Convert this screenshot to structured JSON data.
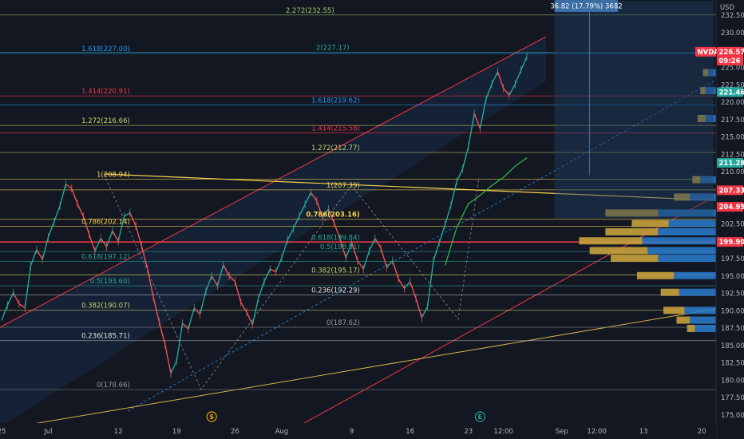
{
  "chart_data": {
    "type": "line",
    "symbol": "NVDA",
    "currency": "USD",
    "price_axis": {
      "min": 174.0,
      "max": 235.8,
      "ticks": [
        175.0,
        177.5,
        180.0,
        182.5,
        185.0,
        187.5,
        190.0,
        192.5,
        195.0,
        197.5,
        200.0,
        202.5,
        205.0,
        207.5,
        210.0,
        212.5,
        215.0,
        217.5,
        220.0,
        222.5,
        225.0,
        227.5,
        230.0,
        232.5
      ]
    },
    "time_axis": {
      "labels": [
        {
          "text": "25",
          "i": 0
        },
        {
          "text": "Jul",
          "i": 4
        },
        {
          "text": "12",
          "i": 10
        },
        {
          "text": "19",
          "i": 15
        },
        {
          "text": "26",
          "i": 20
        },
        {
          "text": "Aug",
          "i": 24
        },
        {
          "text": "9",
          "i": 30
        },
        {
          "text": "16",
          "i": 35
        },
        {
          "text": "23",
          "i": 40
        },
        {
          "text": "12:00",
          "i": 43
        },
        {
          "text": "Sep",
          "i": 48
        },
        {
          "text": "12:00",
          "i": 51
        },
        {
          "text": "13",
          "i": 55
        },
        {
          "text": "20",
          "i": 60
        }
      ],
      "markers": [
        {
          "text": "S",
          "i": 18,
          "color": "#f0a500"
        },
        {
          "text": "E",
          "i": 41,
          "color": "#26a69a"
        }
      ]
    },
    "price_series": [
      {
        "i": 0,
        "v": 188.6
      },
      {
        "i": 0.5,
        "v": 190.8
      },
      {
        "i": 1,
        "v": 192.6
      },
      {
        "i": 1.5,
        "v": 191.0
      },
      {
        "i": 2,
        "v": 190.4
      },
      {
        "i": 2.5,
        "v": 196.5
      },
      {
        "i": 3,
        "v": 198.8
      },
      {
        "i": 3.5,
        "v": 197.4
      },
      {
        "i": 4,
        "v": 200.6
      },
      {
        "i": 4.5,
        "v": 202.8
      },
      {
        "i": 5,
        "v": 205.1
      },
      {
        "i": 5.5,
        "v": 208.2
      },
      {
        "i": 6,
        "v": 207.6
      },
      {
        "i": 6.5,
        "v": 205.4
      },
      {
        "i": 7,
        "v": 203.6
      },
      {
        "i": 7.5,
        "v": 201.0
      },
      {
        "i": 8,
        "v": 198.6
      },
      {
        "i": 8.5,
        "v": 200.4
      },
      {
        "i": 9,
        "v": 199.2
      },
      {
        "i": 9.5,
        "v": 201.5
      },
      {
        "i": 10,
        "v": 200.0
      },
      {
        "i": 10.5,
        "v": 203.6
      },
      {
        "i": 11,
        "v": 204.1
      },
      {
        "i": 11.5,
        "v": 202.2
      },
      {
        "i": 12,
        "v": 199.3
      },
      {
        "i": 12.5,
        "v": 196.0
      },
      {
        "i": 13,
        "v": 192.0
      },
      {
        "i": 13.5,
        "v": 188.4
      },
      {
        "i": 14,
        "v": 185.2
      },
      {
        "i": 14.5,
        "v": 181.0
      },
      {
        "i": 15,
        "v": 182.8
      },
      {
        "i": 15.5,
        "v": 188.2
      },
      {
        "i": 16,
        "v": 187.4
      },
      {
        "i": 16.5,
        "v": 190.4
      },
      {
        "i": 17,
        "v": 189.5
      },
      {
        "i": 17.5,
        "v": 192.8
      },
      {
        "i": 18,
        "v": 195.0
      },
      {
        "i": 18.5,
        "v": 193.6
      },
      {
        "i": 19,
        "v": 196.6
      },
      {
        "i": 19.5,
        "v": 195.0
      },
      {
        "i": 20,
        "v": 194.2
      },
      {
        "i": 20.5,
        "v": 191.2
      },
      {
        "i": 21,
        "v": 189.8
      },
      {
        "i": 21.5,
        "v": 188.0
      },
      {
        "i": 22,
        "v": 191.8
      },
      {
        "i": 22.5,
        "v": 194.2
      },
      {
        "i": 23,
        "v": 196.0
      },
      {
        "i": 23.5,
        "v": 195.6
      },
      {
        "i": 24,
        "v": 197.6
      },
      {
        "i": 24.5,
        "v": 200.2
      },
      {
        "i": 25,
        "v": 201.8
      },
      {
        "i": 25.5,
        "v": 203.6
      },
      {
        "i": 26,
        "v": 205.3
      },
      {
        "i": 26.5,
        "v": 207.0
      },
      {
        "i": 27,
        "v": 205.8
      },
      {
        "i": 27.5,
        "v": 203.4
      },
      {
        "i": 28,
        "v": 204.6
      },
      {
        "i": 28.5,
        "v": 202.6
      },
      {
        "i": 29,
        "v": 200.4
      },
      {
        "i": 29.5,
        "v": 197.6
      },
      {
        "i": 30,
        "v": 199.8
      },
      {
        "i": 30.5,
        "v": 197.2
      },
      {
        "i": 31,
        "v": 196.0
      },
      {
        "i": 31.5,
        "v": 198.6
      },
      {
        "i": 32,
        "v": 200.4
      },
      {
        "i": 32.5,
        "v": 199.0
      },
      {
        "i": 33,
        "v": 196.2
      },
      {
        "i": 33.5,
        "v": 197.2
      },
      {
        "i": 34,
        "v": 194.6
      },
      {
        "i": 34.5,
        "v": 193.2
      },
      {
        "i": 35,
        "v": 194.2
      },
      {
        "i": 35.5,
        "v": 191.8
      },
      {
        "i": 36,
        "v": 189.0
      },
      {
        "i": 36.5,
        "v": 190.6
      },
      {
        "i": 37,
        "v": 197.2
      },
      {
        "i": 37.5,
        "v": 199.8
      },
      {
        "i": 38,
        "v": 202.4
      },
      {
        "i": 38.5,
        "v": 205.2
      },
      {
        "i": 39,
        "v": 208.6
      },
      {
        "i": 39.5,
        "v": 210.4
      },
      {
        "i": 40,
        "v": 213.6
      },
      {
        "i": 40.5,
        "v": 218.4
      },
      {
        "i": 41,
        "v": 216.2
      },
      {
        "i": 41.5,
        "v": 220.4
      },
      {
        "i": 42,
        "v": 222.6
      },
      {
        "i": 42.5,
        "v": 224.4
      },
      {
        "i": 43,
        "v": 222.0
      },
      {
        "i": 43.5,
        "v": 221.0
      },
      {
        "i": 44,
        "v": 222.6
      },
      {
        "i": 44.5,
        "v": 224.6
      },
      {
        "i": 45,
        "v": 226.57
      }
    ],
    "moving_average": [
      {
        "i": 38,
        "v": 196.5
      },
      {
        "i": 39,
        "v": 202.0
      },
      {
        "i": 40,
        "v": 205.4
      },
      {
        "i": 41,
        "v": 206.6
      },
      {
        "i": 42,
        "v": 208.0
      },
      {
        "i": 43,
        "v": 209.2
      },
      {
        "i": 44,
        "v": 210.8
      },
      {
        "i": 45,
        "v": 212.0
      }
    ],
    "fib_labels": [
      {
        "text": "2.272(232.55)",
        "price": 232.55,
        "i": 28.5,
        "color": "#a8c66c",
        "weight": "normal"
      },
      {
        "text": "1.618(227.00)",
        "price": 227.0,
        "i": 11,
        "color": "#2196f3",
        "weight": "normal"
      },
      {
        "text": "2(227.17)",
        "price": 227.17,
        "i": 29.8,
        "color": "#26a69a",
        "weight": "normal"
      },
      {
        "text": "1.414(220.91)",
        "price": 220.91,
        "i": 11,
        "color": "#f23645",
        "weight": "normal"
      },
      {
        "text": "1.618(219.62)",
        "price": 219.62,
        "i": 30.7,
        "color": "#2196f3",
        "weight": "normal"
      },
      {
        "text": "1.272(216.66)",
        "price": 216.66,
        "i": 11,
        "color": "#c6d46c",
        "weight": "normal"
      },
      {
        "text": "1.414(215.58)",
        "price": 215.58,
        "i": 30.7,
        "color": "#f23645",
        "weight": "normal"
      },
      {
        "text": "1.272(212.77)",
        "price": 212.77,
        "i": 30.7,
        "color": "#c6d46c",
        "weight": "normal"
      },
      {
        "text": "1(208.94)",
        "price": 208.94,
        "i": 11,
        "color": "#f7d34f",
        "weight": "normal"
      },
      {
        "text": "1(207.39)",
        "price": 207.39,
        "i": 30.7,
        "color": "#f7d34f",
        "weight": "normal"
      },
      {
        "text": "0.786(202.14)",
        "price": 202.14,
        "i": 11,
        "color": "#f7d34f",
        "weight": "normal"
      },
      {
        "text": "0.786(203.16)",
        "price": 203.16,
        "i": 30.7,
        "color": "#f7d34f",
        "weight": "bold"
      },
      {
        "text": "0.618(199.84)",
        "price": 199.84,
        "i": 30.7,
        "color": "#26a69a",
        "weight": "normal"
      },
      {
        "text": "0.618(197.12)",
        "price": 197.12,
        "i": 11,
        "color": "#26a69a",
        "weight": "normal"
      },
      {
        "text": "0.5(198.51)",
        "price": 198.51,
        "i": 30.7,
        "color": "#26a69a",
        "weight": "normal"
      },
      {
        "text": "0.5(193.60)",
        "price": 193.6,
        "i": 11,
        "color": "#26a69a",
        "weight": "normal"
      },
      {
        "text": "0.382(195.17)",
        "price": 195.17,
        "i": 30.7,
        "color": "#c6d46c",
        "weight": "normal"
      },
      {
        "text": "0.382(190.07)",
        "price": 190.07,
        "i": 11,
        "color": "#c6d46c",
        "weight": "normal"
      },
      {
        "text": "0.236(192.29)",
        "price": 192.29,
        "i": 30.7,
        "color": "#e0e0e0",
        "weight": "normal"
      },
      {
        "text": "0.236(185.71)",
        "price": 185.71,
        "i": 11,
        "color": "#e0e0e0",
        "weight": "normal"
      },
      {
        "text": "0(187.62)",
        "price": 187.62,
        "i": 30.7,
        "color": "#9598a1",
        "weight": "normal"
      },
      {
        "text": "0(178.66)",
        "price": 178.66,
        "i": 11,
        "color": "#9598a1",
        "weight": "normal"
      }
    ],
    "fib_levels": [
      {
        "price": 232.55,
        "color": "#a8c66c"
      },
      {
        "price": 227.17,
        "color": "#26a69a"
      },
      {
        "price": 227.0,
        "color": "#2196f3"
      },
      {
        "price": 220.91,
        "color": "#f23645"
      },
      {
        "price": 219.62,
        "color": "#2196f3"
      },
      {
        "price": 216.66,
        "color": "#c6d46c"
      },
      {
        "price": 215.58,
        "color": "#f23645"
      },
      {
        "price": 212.77,
        "color": "#c6d46c"
      },
      {
        "price": 208.94,
        "color": "#f7d34f"
      },
      {
        "price": 207.39,
        "color": "#f7d34f"
      },
      {
        "price": 203.16,
        "color": "#f7d34f"
      },
      {
        "price": 202.14,
        "color": "#f7d34f"
      },
      {
        "price": 199.84,
        "color": "#26a69a"
      },
      {
        "price": 198.51,
        "color": "#26a69a"
      },
      {
        "price": 197.12,
        "color": "#26a69a"
      },
      {
        "price": 195.17,
        "color": "#c6d46c"
      },
      {
        "price": 193.6,
        "color": "#26a69a"
      },
      {
        "price": 192.29,
        "color": "#b2b5be"
      },
      {
        "price": 190.07,
        "color": "#c6d46c"
      },
      {
        "price": 187.62,
        "color": "#787b86"
      },
      {
        "price": 185.71,
        "color": "#b2b5be"
      },
      {
        "price": 178.66,
        "color": "#787b86"
      }
    ],
    "horizontal_line": {
      "price": 199.9,
      "color": "#f23645"
    },
    "price_tags": [
      {
        "text": "NVDA",
        "price": 226.57,
        "bg": "#f23645",
        "fg": "#ffffff",
        "kind": "symbol"
      },
      {
        "text": "226.57",
        "price": 226.57,
        "bg": "#f23645",
        "fg": "#ffffff",
        "kind": "value"
      },
      {
        "text": "09:26",
        "price": 226.57,
        "bg": "#f23645",
        "fg": "#ffffff",
        "kind": "countdown"
      },
      {
        "text": "221.46",
        "price": 221.46,
        "bg": "#26a69a",
        "fg": "#ffffff",
        "kind": "value"
      },
      {
        "text": "211.28",
        "price": 211.28,
        "bg": "#26a69a",
        "fg": "#ffffff",
        "kind": "value"
      },
      {
        "text": "207.33",
        "price": 207.33,
        "bg": "#f23645",
        "fg": "#ffffff",
        "kind": "value"
      },
      {
        "text": "204.95",
        "price": 204.95,
        "bg": "#f23645",
        "fg": "#ffffff",
        "kind": "value"
      },
      {
        "text": "199.90",
        "price": 199.9,
        "bg": "#f23645",
        "fg": "#ffffff",
        "kind": "value"
      }
    ],
    "measure": {
      "text": "36.82 (17.79%) 3682",
      "price": 233.9,
      "i": 47.5
    },
    "volume_profile": [
      {
        "price": 187.4,
        "up": 3,
        "down": 8
      },
      {
        "price": 188.6,
        "up": 5,
        "down": 10
      },
      {
        "price": 190.0,
        "up": 8,
        "down": 12
      },
      {
        "price": 192.6,
        "up": 7,
        "down": 14
      },
      {
        "price": 195.0,
        "up": 14,
        "down": 16
      },
      {
        "price": 197.5,
        "up": 18,
        "down": 22
      },
      {
        "price": 198.6,
        "up": 22,
        "down": 26
      },
      {
        "price": 200.0,
        "up": 24,
        "down": 28
      },
      {
        "price": 201.3,
        "up": 20,
        "down": 22
      },
      {
        "price": 202.5,
        "up": 14,
        "down": 18
      },
      {
        "price": 204.0,
        "up": 20,
        "down": 22
      },
      {
        "price": 206.3,
        "up": 6,
        "down": 10
      },
      {
        "price": 208.8,
        "up": 3,
        "down": 6
      },
      {
        "price": 217.6,
        "up": 3,
        "down": 4
      },
      {
        "price": 221.6,
        "up": 2,
        "down": 4
      },
      {
        "price": 224.2,
        "up": 2,
        "down": 3
      }
    ]
  }
}
